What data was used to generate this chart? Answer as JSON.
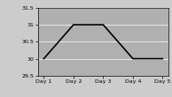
{
  "categories": [
    "Day 1",
    "Day 2",
    "Day 3",
    "Day 4",
    "Day 5"
  ],
  "values": [
    30.0,
    31.0,
    31.0,
    30.0,
    30.0
  ],
  "line_color": "#000000",
  "bg_color": "#b0b0b0",
  "fig_color": "#cccccc",
  "ylim": [
    29.5,
    31.5
  ],
  "yticks": [
    29.5,
    30.0,
    30.5,
    31.0,
    31.5
  ],
  "ytick_labels": [
    "29.5",
    "30",
    "30.5",
    "31",
    "31.5"
  ],
  "linewidth": 1.2,
  "grid_color": "#ffffff",
  "grid_linewidth": 0.5,
  "tick_labelsize": 4.5,
  "spine_linewidth": 0.5
}
